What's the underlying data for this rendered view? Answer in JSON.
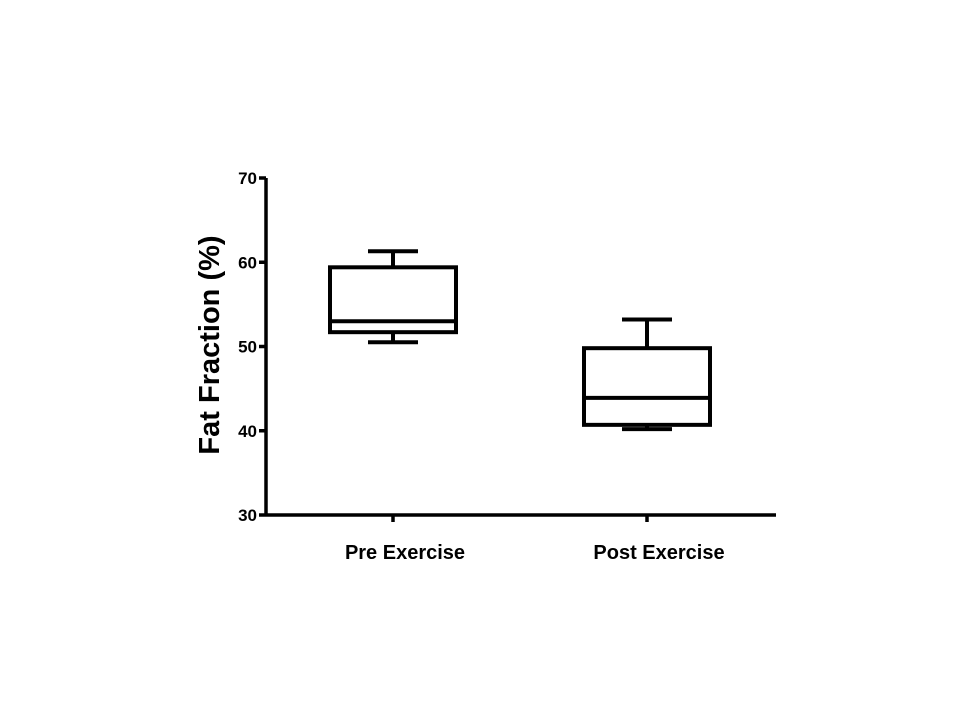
{
  "chart_data": {
    "type": "box",
    "title": "",
    "xlabel": "",
    "ylabel": "Fat Fraction (%)",
    "ylim": [
      30,
      70
    ],
    "yticks": [
      30,
      40,
      50,
      60,
      70
    ],
    "grid": false,
    "categories": [
      "Pre Exercise",
      "Post Exercise"
    ],
    "boxes": [
      {
        "category": "Pre Exercise",
        "min": 50.5,
        "q1": 51.7,
        "median": 53.0,
        "q3": 59.4,
        "max": 61.3
      },
      {
        "category": "Post Exercise",
        "min": 40.2,
        "q1": 40.7,
        "median": 43.9,
        "q3": 49.8,
        "max": 53.2
      }
    ]
  }
}
